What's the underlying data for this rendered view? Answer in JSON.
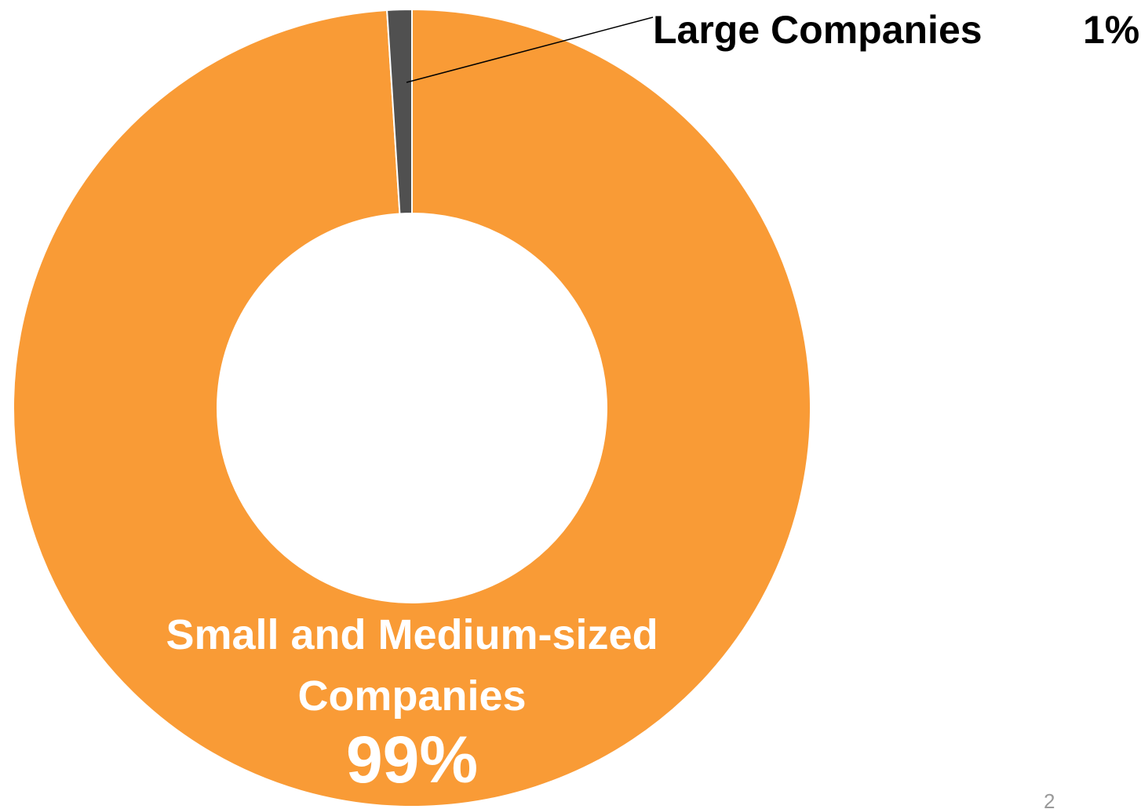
{
  "chart_data": {
    "type": "pie",
    "donut": true,
    "categories": [
      "Small and Medium-sized Companies",
      "Large Companies"
    ],
    "values": [
      99,
      1
    ],
    "value_labels": [
      "99%",
      "1%"
    ],
    "colors": [
      "#f99b36",
      "#505050"
    ]
  },
  "page_number": "2"
}
